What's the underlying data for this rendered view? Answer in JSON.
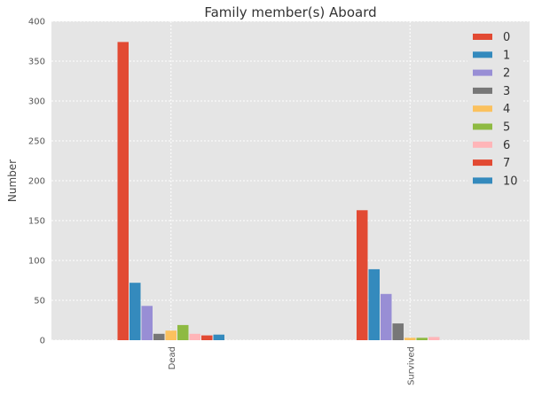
{
  "chart_data": {
    "type": "bar",
    "title": "Family member(s) Aboard",
    "xlabel": "",
    "ylabel": "Number",
    "categories": [
      "Dead",
      "Survived"
    ],
    "ylim": [
      0,
      400
    ],
    "yticks": [
      0,
      50,
      100,
      150,
      200,
      250,
      300,
      350,
      400
    ],
    "grid": true,
    "legend_position": "top-right",
    "series": [
      {
        "name": "0",
        "values": [
          374,
          163
        ],
        "color": "#E24A33"
      },
      {
        "name": "1",
        "values": [
          72,
          89
        ],
        "color": "#348ABD"
      },
      {
        "name": "2",
        "values": [
          43,
          58
        ],
        "color": "#988ED5"
      },
      {
        "name": "3",
        "values": [
          8,
          21
        ],
        "color": "#777777"
      },
      {
        "name": "4",
        "values": [
          12,
          3
        ],
        "color": "#FBC15E"
      },
      {
        "name": "5",
        "values": [
          19,
          3
        ],
        "color": "#8EBA42"
      },
      {
        "name": "6",
        "values": [
          8,
          4
        ],
        "color": "#FFB5B8"
      },
      {
        "name": "7",
        "values": [
          6,
          0
        ],
        "color": "#E24A33"
      },
      {
        "name": "10",
        "values": [
          7,
          0
        ],
        "color": "#348ABD"
      }
    ]
  }
}
